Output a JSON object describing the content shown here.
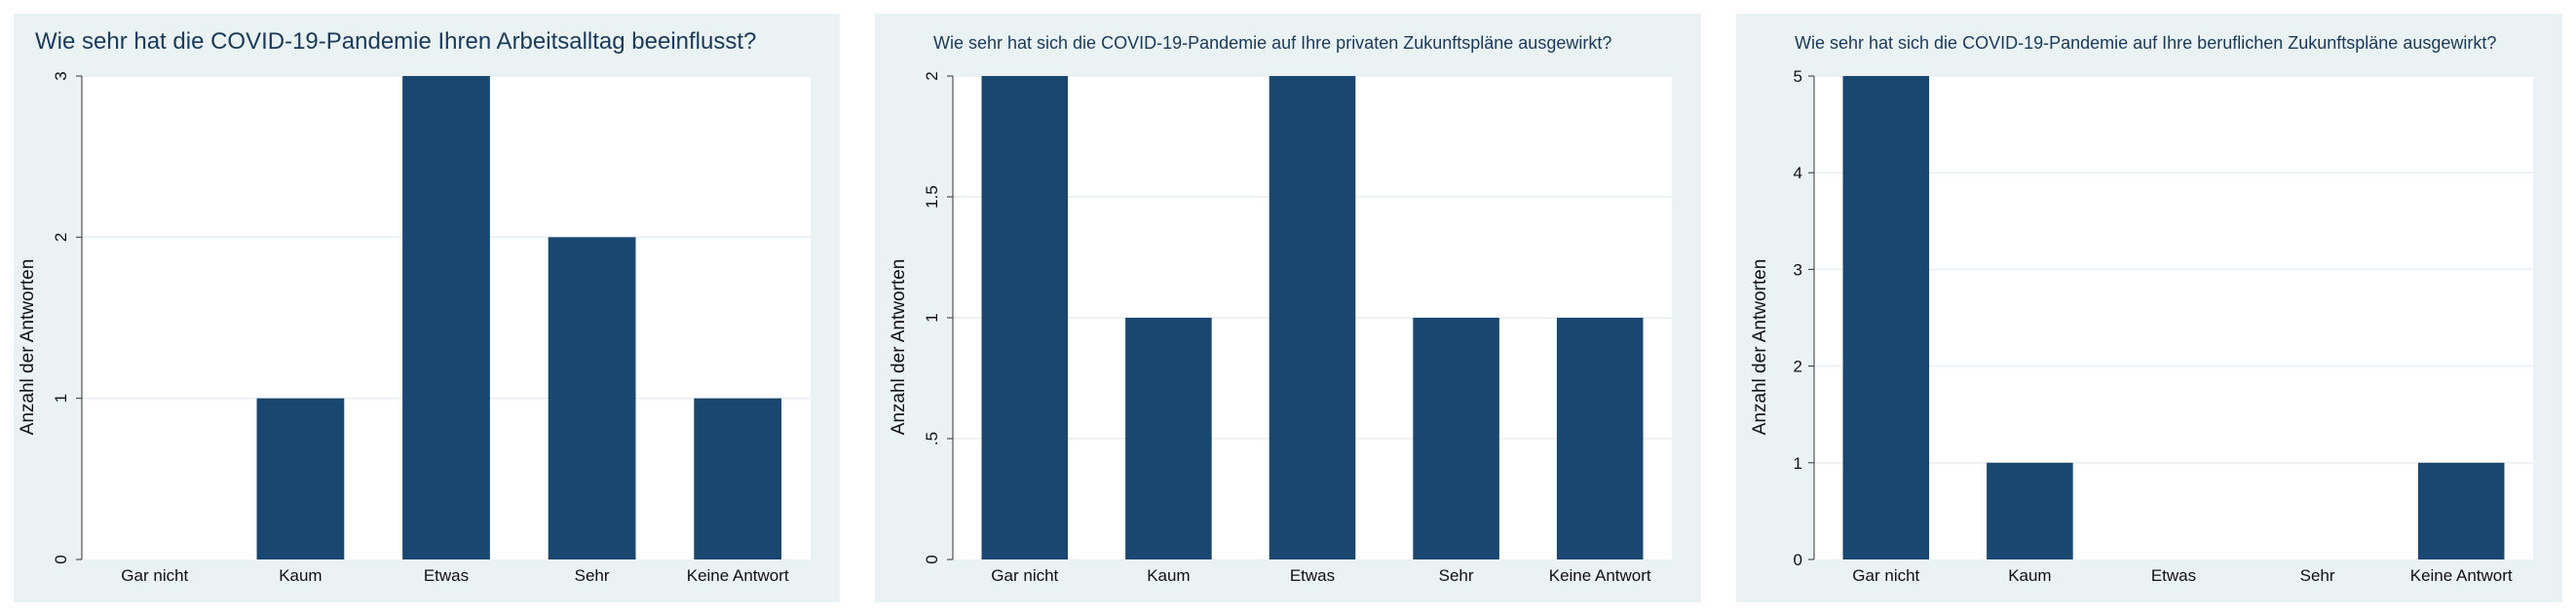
{
  "colors": {
    "bar": "#1a476f",
    "panel_bg": "#eaf2f3",
    "plot_bg": "#ffffff",
    "grid": "#e8eef2",
    "title": "#1a3a5a"
  },
  "chart_data": [
    {
      "type": "bar",
      "title": "Wie sehr hat die COVID-19-Pandemie Ihren Arbeitsalltag beeinflusst?",
      "xlabel": "",
      "ylabel": "Anzahl der Antworten",
      "categories": [
        "Gar nicht",
        "Kaum",
        "Etwas",
        "Sehr",
        "Keine Antwort"
      ],
      "values": [
        0,
        1,
        3,
        2,
        1
      ],
      "ylim": [
        0,
        3
      ],
      "yticks": [
        0,
        1,
        2,
        3
      ],
      "ytick_labels": [
        "0",
        "1",
        "2",
        "3"
      ],
      "grid": true,
      "ytick_rotation": "rotated"
    },
    {
      "type": "bar",
      "title": "Wie sehr hat sich die COVID-19-Pandemie auf Ihre privaten Zukunftspläne ausgewirkt?",
      "xlabel": "",
      "ylabel": "Anzahl der Antworten",
      "categories": [
        "Gar nicht",
        "Kaum",
        "Etwas",
        "Sehr",
        "Keine Antwort"
      ],
      "values": [
        2,
        1,
        2,
        1,
        1
      ],
      "ylim": [
        0,
        2
      ],
      "yticks": [
        0,
        0.5,
        1,
        1.5,
        2
      ],
      "ytick_labels": [
        "0",
        ".5",
        "1",
        "1.5",
        "2"
      ],
      "grid": true,
      "ytick_rotation": "rotated"
    },
    {
      "type": "bar",
      "title": "Wie sehr hat sich die COVID-19-Pandemie auf Ihre beruflichen Zukunftspläne ausgewirkt?",
      "xlabel": "",
      "ylabel": "Anzahl der Antworten",
      "categories": [
        "Gar nicht",
        "Kaum",
        "Etwas",
        "Sehr",
        "Keine Antwort"
      ],
      "values": [
        5,
        1,
        0,
        0,
        1
      ],
      "ylim": [
        0,
        5
      ],
      "yticks": [
        0,
        1,
        2,
        3,
        4,
        5
      ],
      "ytick_labels": [
        "0",
        "1",
        "2",
        "3",
        "4",
        "5"
      ],
      "grid": true,
      "ytick_rotation": "horizontal"
    }
  ]
}
